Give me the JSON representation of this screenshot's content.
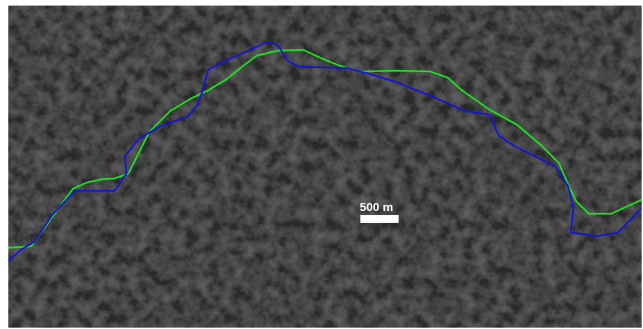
{
  "scale_bar": {
    "label": "500 m"
  }
}
